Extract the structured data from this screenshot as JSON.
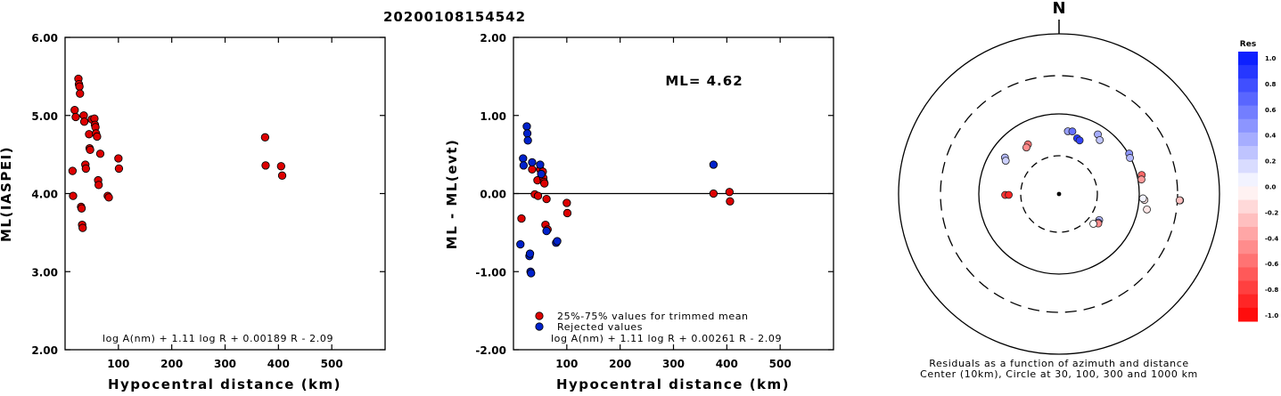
{
  "event_id": "20200108154542",
  "chart_data": [
    {
      "type": "scatter",
      "xlabel": "Hypocentral distance (km)",
      "ylabel": "ML(IASPEI)",
      "xlim": [
        0,
        600
      ],
      "ylim": [
        2.0,
        6.0
      ],
      "x_ticks": [
        "100",
        "200",
        "300",
        "400",
        "500"
      ],
      "y_ticks": [
        "2.00",
        "3.00",
        "4.00",
        "5.00",
        "6.00"
      ],
      "formula": "log A(nm) + 1.11 log R + 0.00189 R - 2.09",
      "series": [
        {
          "color": "#dd0000",
          "points": [
            [
              14,
              4.29
            ],
            [
              15,
              3.97
            ],
            [
              18,
              5.07
            ],
            [
              20,
              4.98
            ],
            [
              25,
              5.47
            ],
            [
              26,
              5.4
            ],
            [
              27,
              5.37
            ],
            [
              28,
              5.28
            ],
            [
              30,
              3.83
            ],
            [
              31,
              3.81
            ],
            [
              32,
              3.6
            ],
            [
              33,
              3.56
            ],
            [
              35,
              5.0
            ],
            [
              36,
              4.92
            ],
            [
              38,
              4.37
            ],
            [
              39,
              4.32
            ],
            [
              45,
              4.76
            ],
            [
              46,
              4.58
            ],
            [
              47,
              4.56
            ],
            [
              50,
              4.95
            ],
            [
              55,
              4.96
            ],
            [
              56,
              4.88
            ],
            [
              57,
              4.85
            ],
            [
              58,
              4.77
            ],
            [
              60,
              4.73
            ],
            [
              62,
              4.17
            ],
            [
              63,
              4.11
            ],
            [
              66,
              4.51
            ],
            [
              80,
              3.97
            ],
            [
              82,
              3.95
            ],
            [
              100,
              4.45
            ],
            [
              101,
              4.32
            ],
            [
              375,
              4.72
            ],
            [
              376,
              4.36
            ],
            [
              405,
              4.35
            ],
            [
              407,
              4.23
            ]
          ]
        }
      ]
    },
    {
      "type": "scatter",
      "xlabel": "Hypocentral distance (km)",
      "ylabel": "ML - ML(evt)",
      "xlim": [
        0,
        600
      ],
      "ylim": [
        -2.0,
        2.0
      ],
      "x_ticks": [
        "100",
        "200",
        "300",
        "400",
        "500"
      ],
      "y_ticks": [
        "-2.00",
        "-1.00",
        "0.00",
        "1.00",
        "2.00"
      ],
      "annotation": "ML= 4.62",
      "formula": "log A(nm) + 1.11 log R + 0.00261 R - 2.09",
      "series": [
        {
          "name": "25%-75% values for trimmed mean",
          "color": "#dd0000",
          "points": [
            [
              15,
              -0.32
            ],
            [
              35,
              0.31
            ],
            [
              40,
              -0.01
            ],
            [
              45,
              0.17
            ],
            [
              46,
              -0.03
            ],
            [
              50,
              0.31
            ],
            [
              55,
              0.28
            ],
            [
              56,
              0.2
            ],
            [
              57,
              0.15
            ],
            [
              58,
              0.13
            ],
            [
              60,
              -0.4
            ],
            [
              62,
              -0.07
            ],
            [
              64,
              -0.46
            ],
            [
              100,
              -0.12
            ],
            [
              101,
              -0.25
            ],
            [
              375,
              0.0
            ],
            [
              405,
              0.02
            ],
            [
              406,
              -0.1
            ]
          ]
        },
        {
          "name": "Rejected values",
          "color": "#0022cc",
          "points": [
            [
              13,
              -0.65
            ],
            [
              18,
              0.45
            ],
            [
              19,
              0.36
            ],
            [
              25,
              0.86
            ],
            [
              26,
              0.77
            ],
            [
              27,
              0.68
            ],
            [
              30,
              -0.8
            ],
            [
              31,
              -0.77
            ],
            [
              32,
              -1.0
            ],
            [
              33,
              -1.02
            ],
            [
              35,
              0.4
            ],
            [
              50,
              0.37
            ],
            [
              52,
              0.25
            ],
            [
              62,
              -0.48
            ],
            [
              80,
              -0.63
            ],
            [
              82,
              -0.61
            ],
            [
              375,
              0.37
            ]
          ]
        }
      ]
    },
    {
      "type": "scatter",
      "title": "Residuals as a function of azimuth and distance",
      "subtitle": "Center (10km), Circle at 30, 100, 300 and 1000 km",
      "north_label": "N",
      "rings_km": [
        30,
        100,
        300,
        1000
      ],
      "colorbar": {
        "title": "Res",
        "min": -1.0,
        "max": 1.0,
        "labels": [
          "1.0",
          "0.8",
          "0.6",
          "0.4",
          "0.2",
          "0.0",
          "-0.2",
          "-0.4",
          "-0.6",
          "-0.8",
          "-1.0"
        ]
      },
      "points_azimuth_deg_distance_km_residual": [
        [
          328,
          64,
          -0.55
        ],
        [
          325,
          61,
          -0.45
        ],
        [
          304,
          75,
          0.3
        ],
        [
          302,
          71,
          0.2
        ],
        [
          269,
          56,
          -0.8
        ],
        [
          269,
          50,
          -0.85
        ],
        [
          8,
          72,
          0.4
        ],
        [
          12,
          73,
          0.6
        ],
        [
          18,
          64,
          0.85
        ],
        [
          21,
          62,
          0.8
        ],
        [
          33,
          85,
          0.35
        ],
        [
          37,
          79,
          0.25
        ],
        [
          60,
          104,
          0.45
        ],
        [
          63,
          99,
          0.3
        ],
        [
          77,
          124,
          -0.6
        ],
        [
          80,
          118,
          -0.4
        ],
        [
          94,
          128,
          -0.1
        ],
        [
          93,
          120,
          0.05
        ],
        [
          100,
          147,
          -0.1
        ],
        [
          93,
          344,
          0.25
        ],
        [
          93,
          341,
          0.15
        ],
        [
          93,
          337,
          -0.25
        ],
        [
          123,
          46,
          0.3
        ],
        [
          126,
          47,
          0.55
        ],
        [
          127,
          48,
          -0.45
        ],
        [
          131,
          42,
          0.0
        ]
      ]
    }
  ]
}
